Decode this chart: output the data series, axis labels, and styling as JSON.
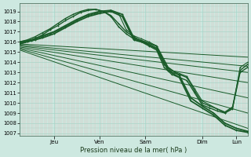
{
  "background_color": "#cde8e0",
  "grid_color": "#aad4c8",
  "grid_minor_color": "#ddbbb8",
  "line_color": "#1a5c2a",
  "xlabel": "Pression niveau de la mer( hPa )",
  "ylim": [
    1006.8,
    1019.8
  ],
  "yticks": [
    1007,
    1008,
    1009,
    1010,
    1011,
    1012,
    1013,
    1014,
    1015,
    1016,
    1017,
    1018,
    1019
  ],
  "total_hours": 120,
  "day_labels": [
    "Jeu",
    "Ven",
    "Sam",
    "Dim",
    "Lun"
  ],
  "day_x": [
    18,
    42,
    66,
    96,
    114
  ],
  "straight_lines": [
    [
      1015.8,
      1014.5
    ],
    [
      1015.7,
      1013.6
    ],
    [
      1015.6,
      1013.0
    ],
    [
      1015.5,
      1012.0
    ],
    [
      1015.4,
      1010.5
    ],
    [
      1015.3,
      1009.0
    ],
    [
      1015.2,
      1007.5
    ]
  ],
  "curved_lines": [
    {
      "x": [
        0,
        4,
        8,
        12,
        16,
        20,
        24,
        28,
        32,
        36,
        40,
        44,
        48,
        52,
        56,
        60,
        64,
        68,
        72,
        76,
        80,
        84,
        88,
        92,
        96,
        100,
        104,
        108,
        112,
        116,
        120
      ],
      "y": [
        1015.8,
        1016.0,
        1016.3,
        1016.7,
        1017.2,
        1017.6,
        1018.1,
        1018.5,
        1018.9,
        1019.1,
        1019.2,
        1019.0,
        1018.5,
        1017.5,
        1016.8,
        1016.3,
        1016.0,
        1015.6,
        1015.2,
        1013.5,
        1012.8,
        1012.5,
        1012.2,
        1011.0,
        1009.8,
        1009.5,
        1009.2,
        1009.0,
        1009.5,
        1013.0,
        1013.5
      ],
      "lw": 1.0
    },
    {
      "x": [
        0,
        4,
        8,
        12,
        16,
        20,
        24,
        28,
        32,
        36,
        40,
        44,
        48,
        52,
        56,
        60,
        64,
        68,
        72,
        76,
        80,
        84,
        88,
        92,
        96,
        100,
        104,
        108,
        112,
        116,
        120
      ],
      "y": [
        1016.0,
        1016.2,
        1016.5,
        1016.9,
        1017.3,
        1017.8,
        1018.3,
        1018.7,
        1019.0,
        1019.2,
        1019.2,
        1019.0,
        1018.6,
        1017.8,
        1017.0,
        1016.5,
        1016.1,
        1015.7,
        1015.3,
        1013.8,
        1013.0,
        1012.8,
        1012.5,
        1011.2,
        1010.0,
        1009.7,
        1009.4,
        1009.1,
        1009.6,
        1013.2,
        1013.8
      ],
      "lw": 1.0
    },
    {
      "x": [
        0,
        6,
        12,
        18,
        24,
        30,
        36,
        42,
        48,
        54,
        60,
        66,
        72,
        78,
        84,
        90,
        96,
        102,
        108,
        114,
        120
      ],
      "y": [
        1015.9,
        1016.1,
        1016.4,
        1016.8,
        1017.4,
        1018.0,
        1018.5,
        1018.8,
        1019.0,
        1018.5,
        1016.2,
        1015.9,
        1015.4,
        1013.2,
        1012.5,
        1010.2,
        1009.5,
        1008.8,
        1007.8,
        1007.3,
        1007.1
      ],
      "lw": 1.3
    },
    {
      "x": [
        0,
        6,
        12,
        18,
        24,
        30,
        36,
        42,
        48,
        54,
        60,
        66,
        72,
        78,
        84,
        90,
        96,
        102,
        108,
        114,
        120
      ],
      "y": [
        1016.0,
        1016.2,
        1016.6,
        1017.0,
        1017.6,
        1018.2,
        1018.7,
        1019.0,
        1019.1,
        1018.7,
        1016.4,
        1016.0,
        1015.6,
        1013.5,
        1012.7,
        1010.5,
        1009.7,
        1009.0,
        1008.0,
        1007.5,
        1007.2
      ],
      "lw": 1.3
    },
    {
      "x": [
        0,
        4,
        8,
        12,
        16,
        20,
        24,
        28,
        32,
        36,
        40,
        44,
        48,
        52,
        56,
        60,
        64,
        68,
        72,
        76,
        80,
        84,
        88,
        92,
        96,
        100,
        104,
        108,
        112,
        116,
        120
      ],
      "y": [
        1015.8,
        1016.0,
        1016.2,
        1016.5,
        1016.8,
        1017.1,
        1017.5,
        1017.9,
        1018.3,
        1018.6,
        1018.8,
        1019.0,
        1019.1,
        1018.8,
        1017.2,
        1016.6,
        1016.3,
        1016.0,
        1015.6,
        1013.8,
        1013.2,
        1012.9,
        1012.6,
        1011.4,
        1010.2,
        1009.8,
        1009.4,
        1009.0,
        1009.4,
        1013.5,
        1014.0
      ],
      "lw": 0.8
    }
  ]
}
